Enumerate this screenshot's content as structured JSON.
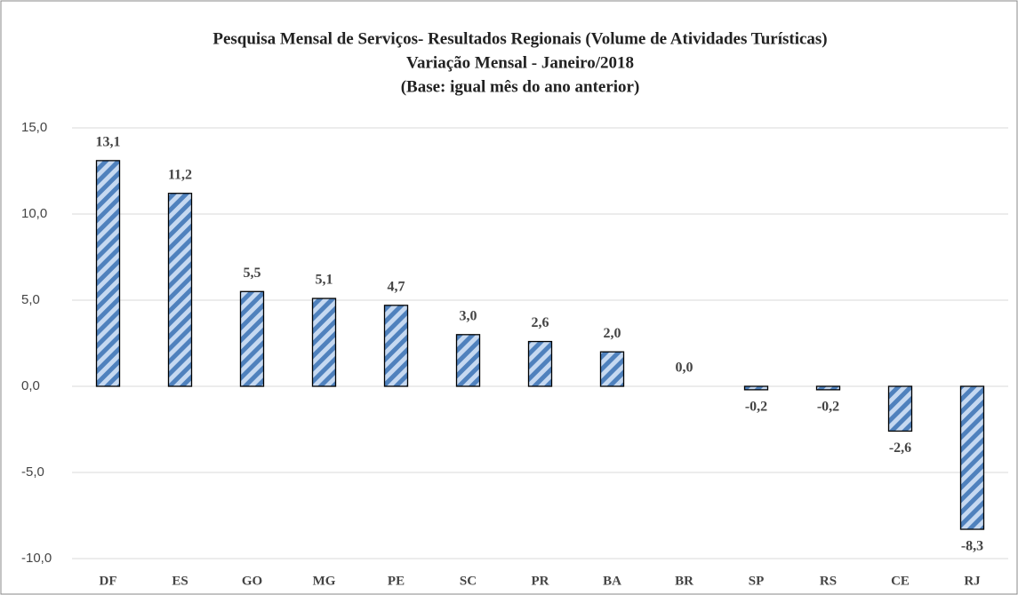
{
  "chart_data": {
    "type": "bar",
    "title": [
      "Pesquisa Mensal de Serviços- Resultados Regionais (Volume de Atividades Turísticas)",
      "Variação Mensal - Janeiro/2018",
      "(Base: igual mês  do ano anterior)"
    ],
    "categories": [
      "DF",
      "ES",
      "GO",
      "MG",
      "PE",
      "SC",
      "PR",
      "BA",
      "BR",
      "SP",
      "RS",
      "CE",
      "RJ"
    ],
    "values": [
      13.1,
      11.2,
      5.5,
      5.1,
      4.7,
      3.0,
      2.6,
      2.0,
      0.0,
      -0.2,
      -0.2,
      -2.6,
      -8.3
    ],
    "value_labels": [
      "13,1",
      "11,2",
      "5,5",
      "5,1",
      "4,7",
      "3,0",
      "2,6",
      "2,0",
      "0,0",
      "-0,2",
      "-0,2",
      "-2,6",
      "-8,3"
    ],
    "color": "#4f81bd",
    "ylim": [
      -10,
      15
    ],
    "yticks": [
      {
        "value": -10,
        "label": "-10,0"
      },
      {
        "value": -5,
        "label": "-5,0"
      },
      {
        "value": 0,
        "label": "0,0"
      },
      {
        "value": 5,
        "label": "5,0"
      },
      {
        "value": 10,
        "label": "10,0"
      },
      {
        "value": 15,
        "label": "15,0"
      }
    ],
    "grid": true
  }
}
